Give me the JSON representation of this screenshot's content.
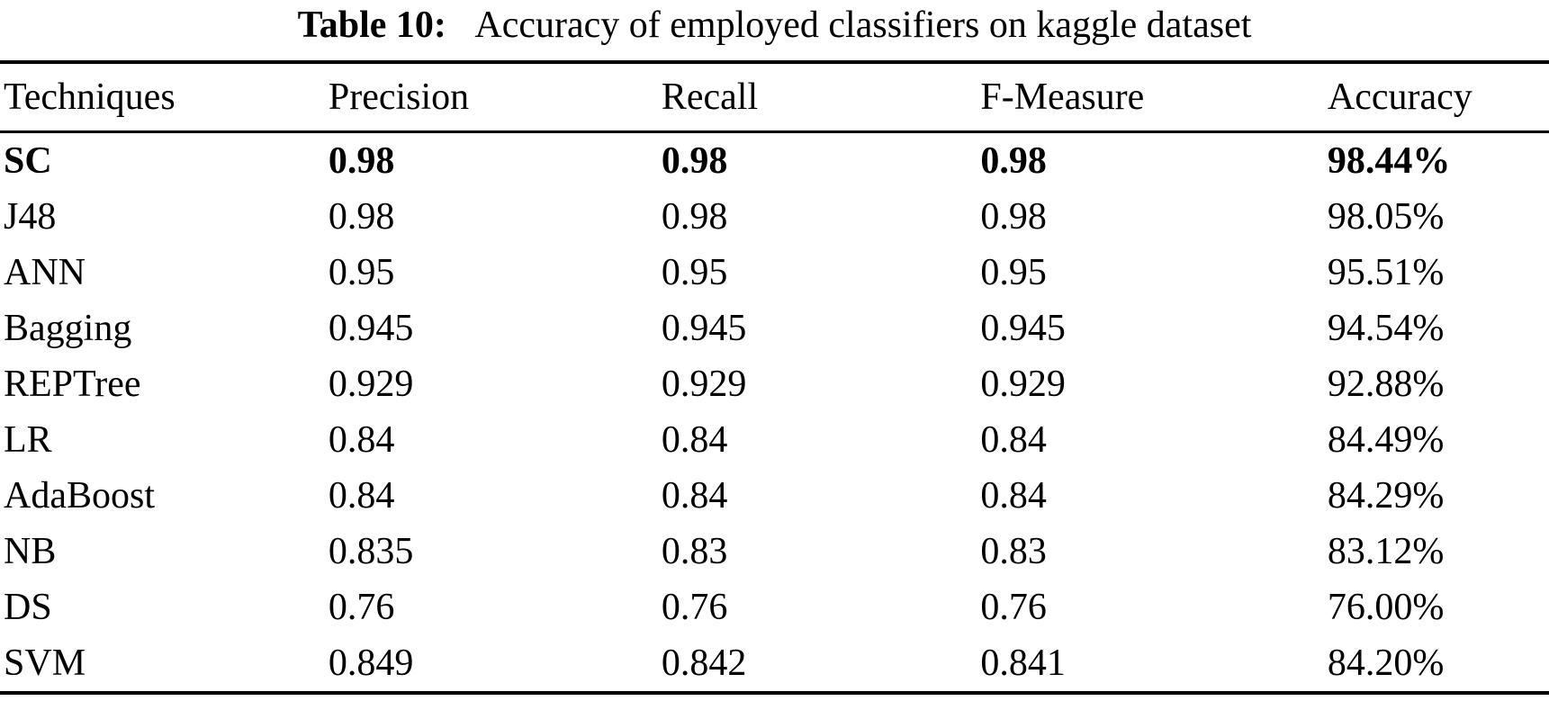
{
  "title": {
    "label": "Table 10:",
    "caption": "Accuracy of employed classifiers on kaggle dataset"
  },
  "table": {
    "headers": [
      "Techniques",
      "Precision",
      "Recall",
      "F-Measure",
      "Accuracy"
    ],
    "column_keys": [
      "technique",
      "precision",
      "recall",
      "f_measure",
      "accuracy"
    ],
    "rows": [
      {
        "technique": "SC",
        "precision": "0.98",
        "recall": "0.98",
        "f_measure": "0.98",
        "accuracy": "98.44%",
        "bold": true
      },
      {
        "technique": "J48",
        "precision": "0.98",
        "recall": "0.98",
        "f_measure": "0.98",
        "accuracy": "98.05%",
        "bold": false
      },
      {
        "technique": "ANN",
        "precision": "0.95",
        "recall": "0.95",
        "f_measure": "0.95",
        "accuracy": "95.51%",
        "bold": false
      },
      {
        "technique": "Bagging",
        "precision": "0.945",
        "recall": "0.945",
        "f_measure": "0.945",
        "accuracy": "94.54%",
        "bold": false
      },
      {
        "technique": "REPTree",
        "precision": "0.929",
        "recall": "0.929",
        "f_measure": "0.929",
        "accuracy": "92.88%",
        "bold": false
      },
      {
        "technique": "LR",
        "precision": "0.84",
        "recall": "0.84",
        "f_measure": "0.84",
        "accuracy": "84.49%",
        "bold": false
      },
      {
        "technique": "AdaBoost",
        "precision": "0.84",
        "recall": "0.84",
        "f_measure": "0.84",
        "accuracy": "84.29%",
        "bold": false
      },
      {
        "technique": "NB",
        "precision": "0.835",
        "recall": "0.83",
        "f_measure": "0.83",
        "accuracy": "83.12%",
        "bold": false
      },
      {
        "technique": "DS",
        "precision": "0.76",
        "recall": "0.76",
        "f_measure": "0.76",
        "accuracy": "76.00%",
        "bold": false
      },
      {
        "technique": "SVM",
        "precision": "0.849",
        "recall": "0.842",
        "f_measure": "0.841",
        "accuracy": "84.20%",
        "bold": false
      }
    ],
    "text_color": "#000000",
    "background_color": "#ffffff"
  }
}
